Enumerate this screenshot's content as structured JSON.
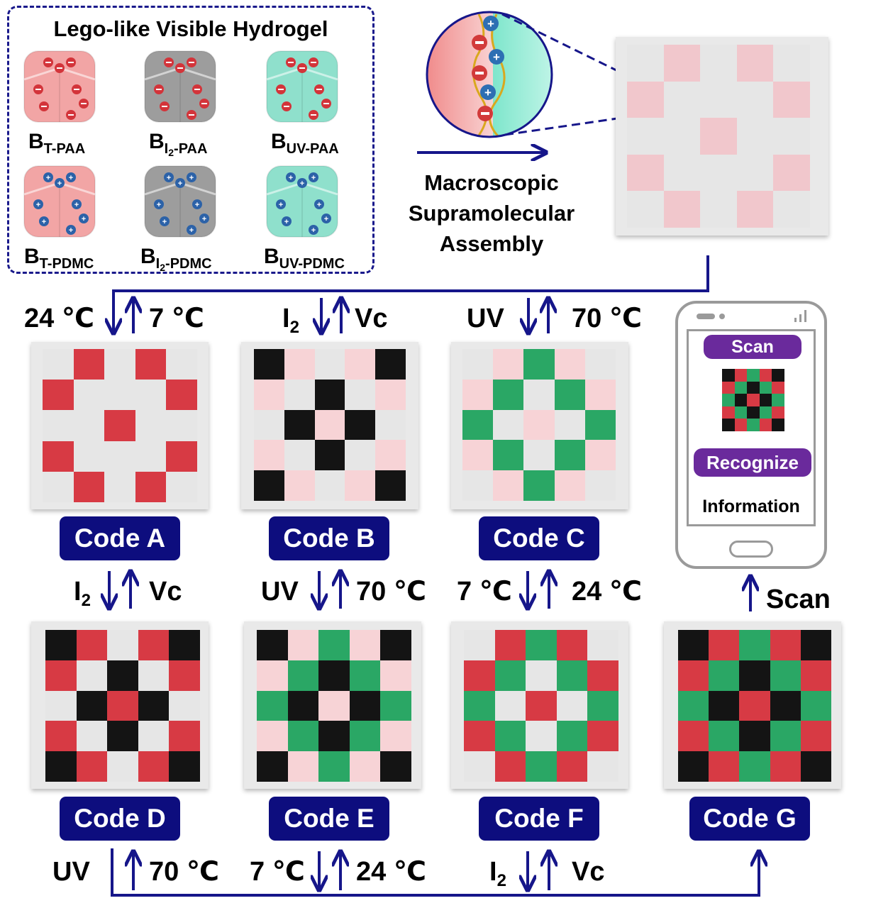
{
  "legend": {
    "title": "Lego-like Visible Hydrogel",
    "blocks": [
      {
        "base": "B",
        "sub": "T-PAA",
        "color": "#f2a5a5",
        "charge": "minus"
      },
      {
        "base": "B",
        "sub": "I",
        "subsub": "2",
        "sub2": "-PAA",
        "color": "#9d9d9d",
        "charge": "minus"
      },
      {
        "base": "B",
        "sub": "UV-PAA",
        "color": "#8fe0cc",
        "charge": "minus"
      },
      {
        "base": "B",
        "sub": "T-PDMC",
        "color": "#f2a5a5",
        "charge": "plus"
      },
      {
        "base": "B",
        "sub": "I",
        "subsub": "2",
        "sub2": "-PDMC",
        "color": "#9d9d9d",
        "charge": "plus"
      },
      {
        "base": "B",
        "sub": "UV-PDMC",
        "color": "#8fe0cc",
        "charge": "plus"
      }
    ]
  },
  "process_label": [
    "Macroscopic",
    "Supramolecular",
    "Assembly"
  ],
  "colors": {
    "K": "#141414",
    "R": "#d73a44",
    "G": "#2aa765",
    "P": "#f7d3d6",
    "L": "#e6e6e6",
    "Q": "#f1c7cc",
    "N": "#e8e8e8"
  },
  "assembled_grid": [
    "LQLQL",
    "QLLLQ",
    "LLQLL",
    "QLLLQ",
    "LQLQL"
  ],
  "codes": [
    {
      "name": "Code A",
      "grid": [
        "LRLRL",
        "RLLLR",
        "LLRLL",
        "RLLLR",
        "LRLRL"
      ]
    },
    {
      "name": "Code B",
      "grid": [
        "KPLPK",
        "PLKLP",
        "LKPKL",
        "PLKLP",
        "KPLPK"
      ]
    },
    {
      "name": "Code C",
      "grid": [
        "LPGPL",
        "PGLGP",
        "GLPLG",
        "PGLGP",
        "LPGPL"
      ]
    },
    {
      "name": "Code D",
      "grid": [
        "KRLRK",
        "RLKLR",
        "LKRKL",
        "RLKLR",
        "KRLRK"
      ]
    },
    {
      "name": "Code E",
      "grid": [
        "KPGPK",
        "PGKGP",
        "GKPKG",
        "PGKGP",
        "KPGPK"
      ]
    },
    {
      "name": "Code F",
      "grid": [
        "LRGRL",
        "RGLGR",
        "GLRLG",
        "RGLGR",
        "LRGRL"
      ]
    },
    {
      "name": "Code G",
      "grid": [
        "KRGRK",
        "RGKGR",
        "GKRKG",
        "RGKGR",
        "KRGRK"
      ]
    }
  ],
  "transitions": {
    "a_top": {
      "left": "24 ℃",
      "right": "7 ℃"
    },
    "b_top": {
      "left": "I",
      "left_sub": "2",
      "right": "Vc"
    },
    "c_top": {
      "left": "UV",
      "right": "70 ℃"
    },
    "ad": {
      "left": "I",
      "left_sub": "2",
      "right": "Vc"
    },
    "be": {
      "left": "UV",
      "right": "70 ℃"
    },
    "cf": {
      "left": "7 ℃",
      "right": "24 ℃"
    },
    "bottom_d": {
      "left": "UV",
      "right": "70 ℃"
    },
    "bottom_e": {
      "left": "7 ℃",
      "right": "24 ℃"
    },
    "bottom_f": {
      "left": "I",
      "left_sub": "2",
      "right": "Vc"
    }
  },
  "phone": {
    "scan_button": "Scan",
    "recognize_button": "Recognize",
    "info_text": "Information"
  },
  "scan_label": "Scan",
  "theme": {
    "navy": "#0d0d7e",
    "arrow": "#16168a",
    "pill": "#6a2a9c"
  }
}
